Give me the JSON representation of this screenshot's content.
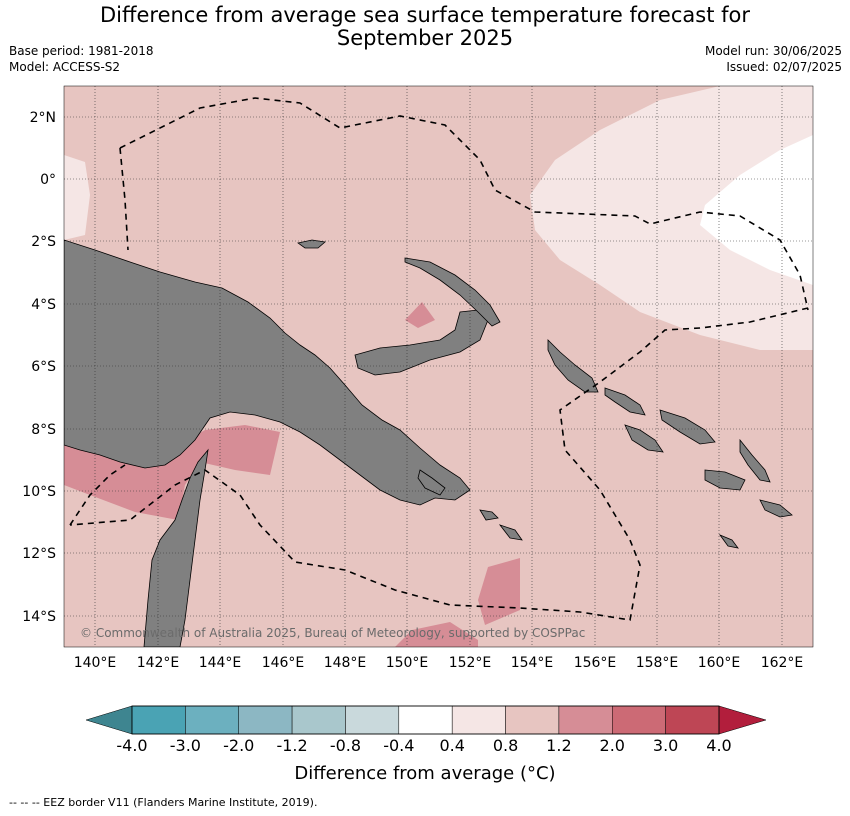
{
  "title_line1": "Difference from average sea surface temperature forecast for",
  "title_line2": "September 2025",
  "base_period": "Base period: 1981-2018",
  "model": "Model: ACCESS-S2",
  "model_run": "Model run: 30/06/2025",
  "issued": "Issued: 02/07/2025",
  "copyright": "© Commonwealth of Australia 2025, Bureau of Meteorology, supported by COSPPac",
  "lat_labels": [
    "2°N",
    "0°",
    "2°S",
    "4°S",
    "6°S",
    "8°S",
    "10°S",
    "12°S",
    "14°S"
  ],
  "lon_labels": [
    "140°E",
    "142°E",
    "144°E",
    "146°E",
    "148°E",
    "150°E",
    "152°E",
    "154°E",
    "156°E",
    "158°E",
    "160°E",
    "162°E"
  ],
  "colorbar": {
    "title": "Difference from average (°C)",
    "tick_labels": [
      "-4.0",
      "-3.0",
      "-2.0",
      "-1.2",
      "-0.8",
      "-0.4",
      "0.4",
      "0.8",
      "1.2",
      "2.0",
      "3.0",
      "4.0"
    ],
    "colors": [
      "#3e8590",
      "#4aa3b4",
      "#6cb0bf",
      "#8cb7c3",
      "#a9c7cc",
      "#c9d9dc",
      "#ffffff",
      "#f5e6e5",
      "#e7c5c1",
      "#d68d96",
      "#cc6a75",
      "#be4655",
      "#b21e3c"
    ]
  },
  "footnote": "--  --  -- EEZ border V11 (Flanders Marine Institute, 2019).",
  "colors": {
    "land": "#808080",
    "sea_base": "#e7c5c1",
    "sea_cool": "#f5e6e5",
    "sea_warm": "#d68d96"
  }
}
